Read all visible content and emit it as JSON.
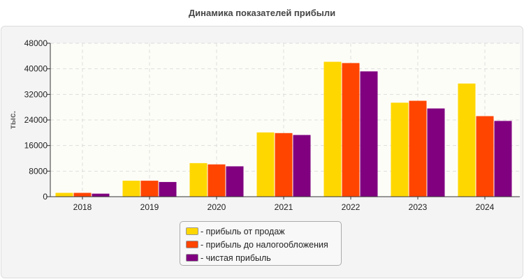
{
  "chart_data": {
    "type": "bar",
    "title": "Динамика показателей прибыли",
    "ylabel": "тыс.",
    "xlabel": "",
    "ylim": [
      0,
      48000
    ],
    "yticks": [
      0,
      8000,
      16000,
      24000,
      32000,
      40000,
      48000
    ],
    "categories": [
      "2018",
      "2019",
      "2020",
      "2021",
      "2022",
      "2023",
      "2024"
    ],
    "grid": true,
    "legend_placement": "bottom",
    "series": [
      {
        "name": "- прибыль от продаж",
        "color": "#FFD700",
        "values": [
          1200,
          5000,
          10500,
          20100,
          42200,
          29400,
          35400
        ]
      },
      {
        "name": "- прибыль до налогообложения",
        "color": "#FF4500",
        "values": [
          1200,
          5000,
          10100,
          19900,
          41800,
          30000,
          25200
        ]
      },
      {
        "name": "- чистая прибыль",
        "color": "#800080",
        "values": [
          950,
          4600,
          9500,
          19300,
          39200,
          27600,
          23700
        ]
      }
    ]
  }
}
